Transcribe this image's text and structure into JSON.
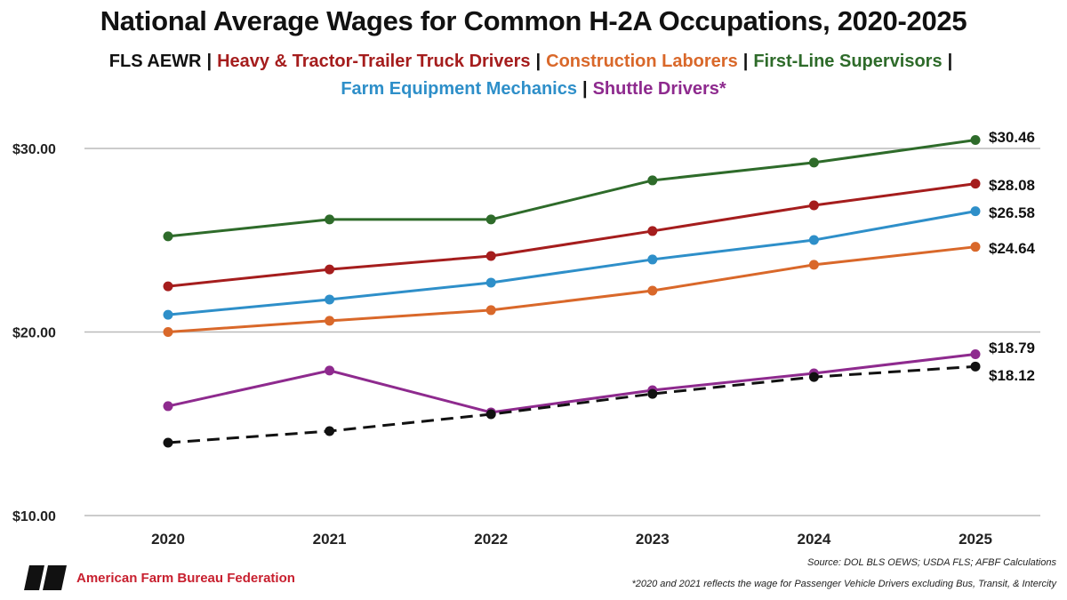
{
  "chart_data": {
    "type": "line",
    "title": "National Average Wages for Common H-2A Occupations, 2020-2025",
    "categories": [
      "2020",
      "2021",
      "2022",
      "2023",
      "2024",
      "2025"
    ],
    "ylim": [
      10,
      31
    ],
    "yticks": [
      10,
      20,
      30
    ],
    "ytick_labels": [
      "$10.00",
      "$20.00",
      "$30.00"
    ],
    "grid": "horizontal",
    "legend_placement": "top",
    "series": [
      {
        "name": "FLS AEWR",
        "color": "#111111",
        "dashed": true,
        "values": [
          13.97,
          14.6,
          15.52,
          16.63,
          17.55,
          18.12
        ],
        "end_label": "$18.12"
      },
      {
        "name": "Heavy & Tractor-Trailer Truck Drivers",
        "color": "#a51d1d",
        "values": [
          22.49,
          23.41,
          24.14,
          25.5,
          26.9,
          28.08
        ],
        "end_label": "$28.08"
      },
      {
        "name": "Construction Laborers",
        "color": "#d9682a",
        "values": [
          20.0,
          20.61,
          21.19,
          22.25,
          23.66,
          24.64
        ],
        "end_label": "$24.64"
      },
      {
        "name": "First-Line Supervisors",
        "color": "#2e6b2a",
        "values": [
          25.21,
          26.13,
          26.13,
          28.26,
          29.23,
          30.46
        ],
        "end_label": "$30.46"
      },
      {
        "name": "Farm Equipment Mechanics",
        "color": "#2e8fc9",
        "values": [
          20.94,
          21.77,
          22.69,
          23.95,
          25.01,
          26.58
        ],
        "end_label": "$26.58"
      },
      {
        "name": "Shuttle Drivers*",
        "color": "#8e2a8e",
        "values": [
          15.96,
          17.9,
          15.62,
          16.83,
          17.75,
          18.79
        ],
        "end_label": "$18.79"
      }
    ]
  },
  "separator": "|",
  "source": "Source: DOL BLS OEWS; USDA FLS; AFBF Calculations",
  "footnote": "*2020 and 2021 reflects the wage for Passenger Vehicle Drivers excluding Bus, Transit, & Intercity",
  "logo": {
    "text": "American Farm Bureau Federation",
    "mark": "FB"
  }
}
